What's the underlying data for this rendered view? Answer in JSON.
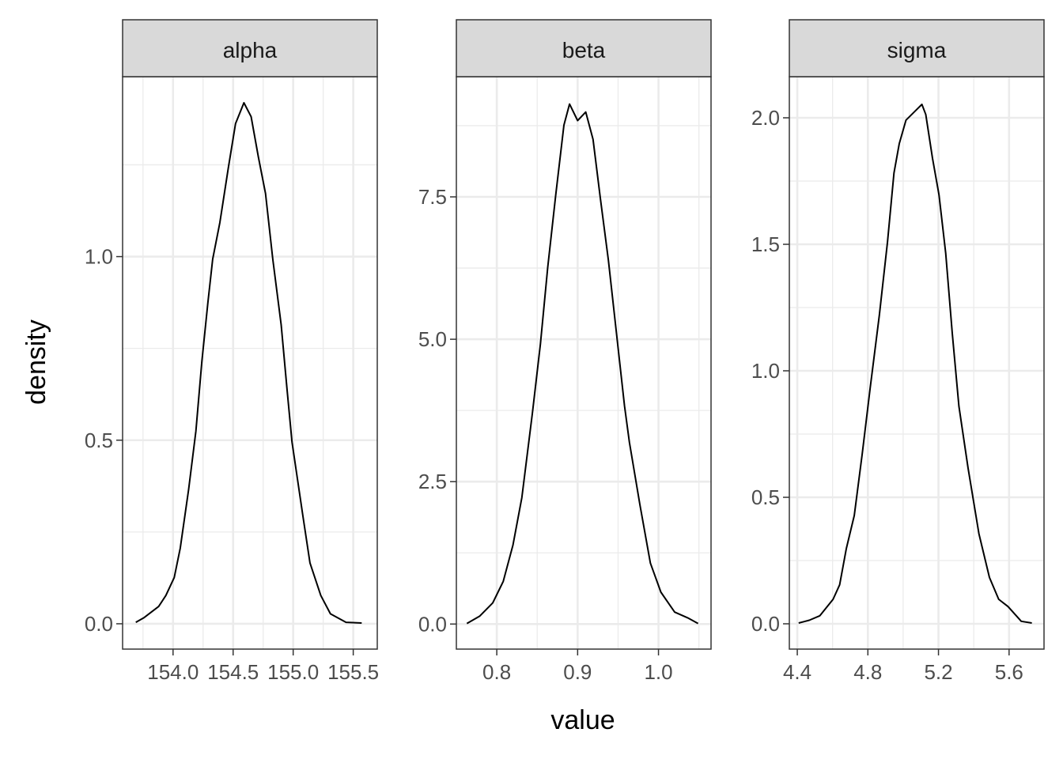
{
  "chart_data": {
    "type": "line",
    "xlabel": "value",
    "ylabel": "density",
    "grid": true,
    "colors": {
      "line": "#000000",
      "strip": "#d9d9d9",
      "grid": "#ebebeb",
      "panel_border": "#333333"
    },
    "panels": [
      {
        "title": "alpha",
        "xlim": [
          153.58,
          155.7
        ],
        "ylim": [
          -0.069,
          1.49
        ],
        "xticks": [
          154.0,
          154.5,
          155.0,
          155.5
        ],
        "xtick_labels": [
          "154.0",
          "154.5",
          "155.0",
          "155.5"
        ],
        "xminor": [
          153.75,
          154.25,
          154.75,
          155.25
        ],
        "yticks": [
          0,
          0.5,
          1.0
        ],
        "ytick_labels": [
          "0.0",
          "0.5",
          "1.0"
        ],
        "yminor": [
          0.25,
          0.75,
          1.25
        ],
        "x": [
          153.69,
          153.76,
          153.88,
          153.94,
          154.01,
          154.06,
          154.13,
          154.19,
          154.24,
          154.29,
          154.33,
          154.39,
          154.46,
          154.52,
          154.59,
          154.65,
          154.71,
          154.77,
          154.83,
          154.9,
          154.95,
          154.99,
          155.08,
          155.14,
          155.23,
          155.31,
          155.44,
          155.57
        ],
        "y": [
          0.004,
          0.017,
          0.047,
          0.077,
          0.126,
          0.206,
          0.366,
          0.525,
          0.714,
          0.874,
          0.993,
          1.093,
          1.242,
          1.362,
          1.419,
          1.381,
          1.272,
          1.172,
          0.993,
          0.814,
          0.634,
          0.495,
          0.296,
          0.166,
          0.077,
          0.027,
          0.004,
          0.002
        ]
      },
      {
        "title": "beta",
        "xlim": [
          0.75,
          1.065
        ],
        "ylim": [
          -0.44,
          9.61
        ],
        "xticks": [
          0.8,
          0.9,
          1.0
        ],
        "xtick_labels": [
          "0.8",
          "0.9",
          "1.0"
        ],
        "xminor": [
          0.75,
          0.85,
          0.95,
          1.05
        ],
        "yticks": [
          0,
          2.5,
          5.0,
          7.5
        ],
        "ytick_labels": [
          "0.0",
          "2.5",
          "5.0",
          "7.5"
        ],
        "yminor": [
          1.25,
          3.75,
          6.25,
          8.75
        ],
        "x": [
          0.763,
          0.779,
          0.795,
          0.808,
          0.82,
          0.831,
          0.844,
          0.854,
          0.863,
          0.873,
          0.883,
          0.89,
          0.9,
          0.91,
          0.919,
          0.928,
          0.938,
          0.948,
          0.958,
          0.964,
          0.977,
          0.99,
          1.003,
          1.02,
          1.036,
          1.049
        ],
        "y": [
          0.01,
          0.14,
          0.37,
          0.75,
          1.39,
          2.22,
          3.7,
          4.92,
          6.26,
          7.54,
          8.76,
          9.13,
          8.84,
          8.99,
          8.51,
          7.48,
          6.39,
          5.11,
          3.83,
          3.19,
          2.1,
          1.07,
          0.56,
          0.21,
          0.11,
          0.01
        ]
      },
      {
        "title": "sigma",
        "xlim": [
          4.355,
          5.798
        ],
        "ylim": [
          -0.1,
          2.1625
        ],
        "xticks": [
          4.4,
          4.8,
          5.2,
          5.6
        ],
        "xtick_labels": [
          "4.4",
          "4.8",
          "5.2",
          "5.6"
        ],
        "xminor": [
          4.6,
          5.0,
          5.4
        ],
        "yticks": [
          0,
          0.5,
          1.0,
          1.5,
          2.0
        ],
        "ytick_labels": [
          "0.0",
          "0.5",
          "1.0",
          "1.5",
          "2.0"
        ],
        "yminor": [
          0.25,
          0.75,
          1.25,
          1.75
        ],
        "x": [
          4.408,
          4.468,
          4.528,
          4.603,
          4.64,
          4.678,
          4.723,
          4.768,
          4.813,
          4.865,
          4.911,
          4.948,
          4.978,
          5.016,
          5.068,
          5.106,
          5.128,
          5.166,
          5.203,
          5.241,
          5.278,
          5.316,
          5.368,
          5.429,
          5.489,
          5.541,
          5.594,
          5.669,
          5.729
        ],
        "y": [
          0.003,
          0.014,
          0.032,
          0.097,
          0.154,
          0.298,
          0.428,
          0.673,
          0.932,
          1.22,
          1.509,
          1.782,
          1.898,
          1.991,
          2.027,
          2.053,
          2.013,
          1.84,
          1.696,
          1.465,
          1.148,
          0.86,
          0.615,
          0.356,
          0.183,
          0.097,
          0.068,
          0.01,
          0.003
        ]
      }
    ]
  }
}
